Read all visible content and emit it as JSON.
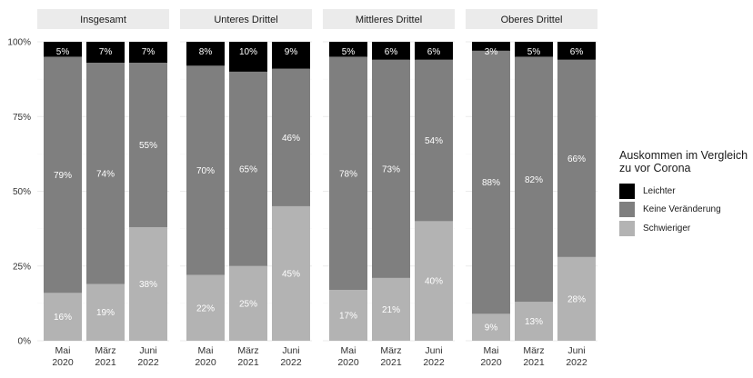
{
  "chart_data": {
    "type": "bar",
    "stacked": true,
    "grid": true,
    "legend_position": "right",
    "legend": {
      "title_lines": [
        "Auskommen im Vergleich",
        "zu vor Corona"
      ],
      "items": [
        {
          "label": "Leichter",
          "color": "#000000"
        },
        {
          "label": "Keine Veränderung",
          "color": "#7f7f7f"
        },
        {
          "label": "Schwieriger",
          "color": "#b3b3b3"
        }
      ]
    },
    "y_ticks": [
      "0%",
      "25%",
      "50%",
      "75%",
      "100%"
    ],
    "ylim": [
      0,
      100
    ],
    "categories": [
      {
        "line1": "Mai",
        "line2": "2020"
      },
      {
        "line1": "März",
        "line2": "2021"
      },
      {
        "line1": "Juni",
        "line2": "2022"
      }
    ],
    "series": [
      {
        "name": "Schwieriger",
        "color": "#b3b3b3",
        "label_color": "#ffffff"
      },
      {
        "name": "Keine Veränderung",
        "color": "#7f7f7f",
        "label_color": "#ffffff"
      },
      {
        "name": "Leichter",
        "color": "#000000",
        "label_color": "#ffffff"
      }
    ],
    "panels": [
      {
        "title": "Insgesamt",
        "values": [
          [
            16,
            79,
            5
          ],
          [
            19,
            74,
            7
          ],
          [
            38,
            55,
            7
          ]
        ],
        "labels": [
          [
            "16%",
            "79%",
            "5%"
          ],
          [
            "19%",
            "74%",
            "7%"
          ],
          [
            "38%",
            "55%",
            "7%"
          ]
        ]
      },
      {
        "title": "Unteres Drittel",
        "values": [
          [
            22,
            70,
            8
          ],
          [
            25,
            65,
            10
          ],
          [
            45,
            46,
            9
          ]
        ],
        "labels": [
          [
            "22%",
            "70%",
            "8%"
          ],
          [
            "25%",
            "65%",
            "10%"
          ],
          [
            "45%",
            "46%",
            "9%"
          ]
        ]
      },
      {
        "title": "Mittleres Drittel",
        "values": [
          [
            17,
            78,
            5
          ],
          [
            21,
            73,
            6
          ],
          [
            40,
            54,
            6
          ]
        ],
        "labels": [
          [
            "17%",
            "78%",
            "5%"
          ],
          [
            "21%",
            "73%",
            "6%"
          ],
          [
            "40%",
            "54%",
            "6%"
          ]
        ]
      },
      {
        "title": "Oberes Drittel",
        "values": [
          [
            9,
            88,
            3
          ],
          [
            13,
            82,
            5
          ],
          [
            28,
            66,
            6
          ]
        ],
        "labels": [
          [
            "9%",
            "88%",
            "3%"
          ],
          [
            "13%",
            "82%",
            "5%"
          ],
          [
            "28%",
            "66%",
            "6%"
          ]
        ]
      }
    ]
  }
}
